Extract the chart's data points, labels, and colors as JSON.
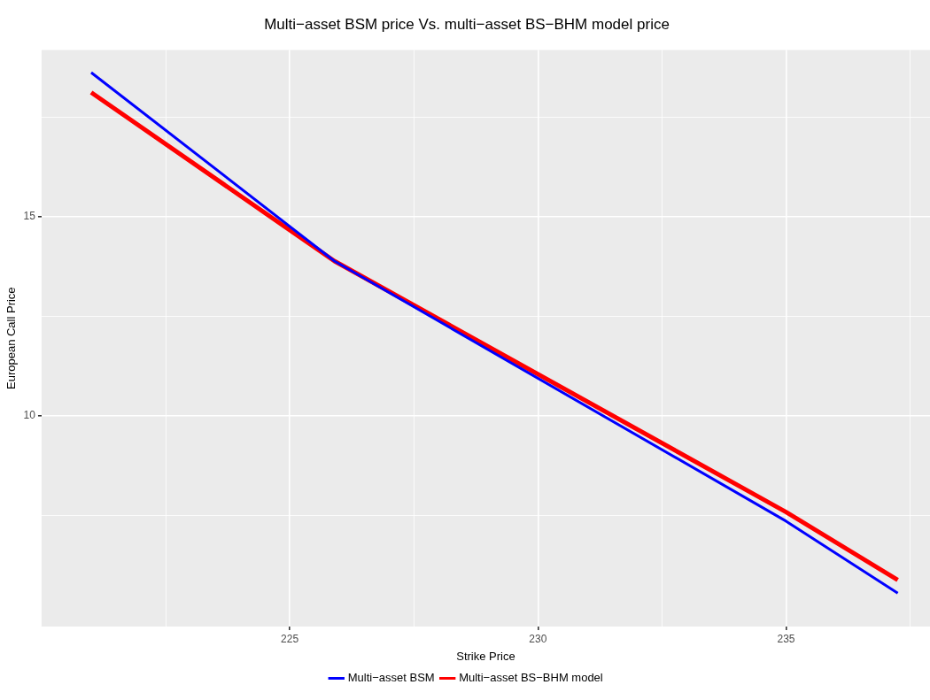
{
  "chart_data": {
    "type": "line",
    "title": "Multi−asset BSM price Vs. multi−asset BS−BHM model price",
    "xlabel": "Strike Price",
    "ylabel": "European Call Price",
    "x": [
      221,
      225.9,
      235,
      237.25
    ],
    "series": [
      {
        "name": "Multi−asset BSM",
        "color": "#0000ff",
        "values": [
          18.63,
          13.89,
          7.35,
          5.54
        ]
      },
      {
        "name": "Multi−asset BS−BHM model",
        "color": "#ff0000",
        "values": [
          18.13,
          13.89,
          7.58,
          5.87
        ]
      }
    ],
    "xlim": [
      220,
      237.9
    ],
    "ylim": [
      4.7,
      19.2
    ],
    "xticks": [
      {
        "value": 222.5,
        "label": null
      },
      225,
      {
        "value": 227.5,
        "label": null
      },
      230,
      {
        "value": 232.5,
        "label": null
      },
      235,
      {
        "value": 237.5,
        "label": null
      }
    ],
    "yticks": [
      {
        "value": 7.5,
        "label": null
      },
      10,
      {
        "value": 12.5,
        "label": null
      },
      15,
      {
        "value": 17.5,
        "label": null
      }
    ],
    "grid": true,
    "legend": "bottom",
    "marker": "none",
    "line_style": "solid"
  }
}
